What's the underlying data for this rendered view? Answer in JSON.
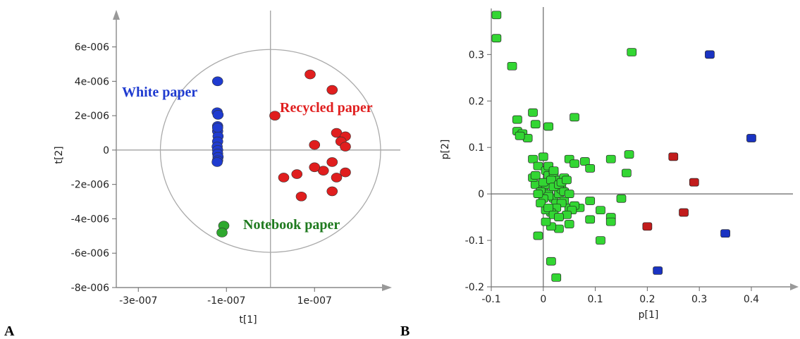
{
  "chart_data": [
    {
      "type": "scatter",
      "panel_label": "A",
      "xlabel": "t[1]",
      "ylabel": "t[2]",
      "xlim": [
        -3.5e-07,
        2.5e-07
      ],
      "ylim": [
        -8e-06,
        7.5e-06
      ],
      "x_ticks": [
        -3e-07,
        -1e-07,
        1e-07
      ],
      "x_tick_labels": [
        "-3e-007",
        "-1e-007",
        "1e-007"
      ],
      "y_ticks": [
        6e-06,
        4e-06,
        2e-06,
        0,
        -2e-06,
        -4e-06,
        -6e-06,
        -8e-06
      ],
      "y_tick_labels": [
        "6e-006",
        "4e-006",
        "2e-006",
        "0",
        "-2e-006",
        "-4e-006",
        "-6e-006",
        "-8e-006"
      ],
      "colors": {
        "White paper": "#1f3bd0",
        "Recycled paper": "#e01e1e",
        "Notebook paper": "#2fa82f"
      },
      "series": [
        {
          "name": "White paper",
          "x": [
            -1.2e-07,
            -1.21e-07,
            -1.19e-07,
            -1.2e-07,
            -1.2e-07,
            -1.19e-07,
            -1.2e-07,
            -1.21e-07,
            -1.2e-07,
            -1.2e-07,
            -1.19e-07,
            -1.2e-07,
            -1.21e-07,
            -1.2e-07
          ],
          "y": [
            4e-06,
            2.2e-06,
            2.05e-06,
            1.4e-06,
            1.1e-06,
            8e-07,
            5e-07,
            2e-07,
            0,
            -2e-07,
            -4e-07,
            -6e-07,
            -7e-07,
            1.3e-06
          ]
        },
        {
          "name": "Recycled paper",
          "x": [
            1e-08,
            9e-08,
            1.4e-07,
            1.5e-07,
            1.7e-07,
            1.6e-07,
            1.7e-07,
            1e-07,
            1.4e-07,
            1.2e-07,
            6e-08,
            3e-08,
            1.7e-07,
            1e-07,
            1.5e-07,
            7e-08,
            1.4e-07
          ],
          "y": [
            2e-06,
            4.4e-06,
            3.5e-06,
            1e-06,
            8e-07,
            5e-07,
            2e-07,
            3e-07,
            -7e-07,
            -1.2e-06,
            -1.4e-06,
            -1.6e-06,
            -1.3e-06,
            -1e-06,
            -1.6e-06,
            -2.7e-06,
            -2.4e-06
          ]
        },
        {
          "name": "Notebook paper",
          "x": [
            -1.06e-07,
            -1.1e-07
          ],
          "y": [
            -4.4e-06,
            -4.8e-06
          ]
        }
      ],
      "ellipse": {
        "cx": 0,
        "cy": -5e-08,
        "rx": 2.5e-07,
        "ry": 5.9e-06
      }
    },
    {
      "type": "scatter",
      "panel_label": "B",
      "xlabel": "p[1]",
      "ylabel": "p[2]",
      "xlim": [
        -0.1,
        0.48
      ],
      "ylim": [
        -0.2,
        0.39
      ],
      "x_ticks": [
        -0.1,
        0,
        0.1,
        0.2,
        0.3,
        0.4
      ],
      "x_tick_labels": [
        "-0.1",
        "0",
        "0.1",
        "0.2",
        "0.3",
        "0.4"
      ],
      "y_ticks": [
        0.3,
        0.2,
        0.1,
        0,
        -0.1,
        -0.2
      ],
      "y_tick_labels": [
        "0.3",
        "0.2",
        "0.1",
        "0",
        "-0.1",
        "-0.2"
      ],
      "colors": {
        "green": "#33d633",
        "red": "#c21c1c",
        "blue": "#1a33c2"
      },
      "series": [
        {
          "name": "",
          "color_key": "blue",
          "x": [
            0.32,
            0.4,
            0.35,
            0.22
          ],
          "y": [
            0.3,
            0.12,
            -0.085,
            -0.165
          ]
        },
        {
          "name": "",
          "color_key": "red",
          "x": [
            0.25,
            0.29,
            0.27,
            0.2
          ],
          "y": [
            0.08,
            0.025,
            -0.04,
            -0.07
          ]
        },
        {
          "name": "",
          "color_key": "green",
          "x": [
            -0.09,
            -0.09,
            -0.06,
            -0.05,
            -0.05,
            -0.04,
            -0.03,
            -0.045,
            -0.02,
            -0.015,
            0.01,
            0.06,
            0.17,
            -0.02,
            -0.01,
            0.0,
            0.005,
            0.01,
            0.02,
            0.03,
            0.04,
            0.05,
            0.06,
            0.08,
            0.09,
            0.13,
            0.16,
            0.165,
            0.09,
            0.11,
            0.13,
            0.15,
            0.13,
            0.11,
            0.09,
            0.07,
            0.05,
            0.03,
            0.015,
            0.005,
            -0.01,
            -0.015,
            0.0,
            0.01,
            0.02,
            0.025,
            0.03,
            0.035,
            0.04,
            0.05,
            0.005,
            0.0,
            -0.005,
            0.01,
            0.015,
            0.02,
            0.03,
            0.04,
            0.05,
            0.06,
            0.055,
            0.045,
            0.035,
            0.025,
            0.015,
            0.005,
            0.0,
            0.01,
            0.02,
            -0.005,
            -0.01,
            0.015,
            0.025,
            0.035,
            0.045,
            -0.02,
            -0.015,
            0.01,
            0.02,
            0.03
          ],
          "y": [
            0.385,
            0.335,
            0.275,
            0.16,
            0.135,
            0.13,
            0.12,
            0.125,
            0.175,
            0.15,
            0.145,
            0.165,
            0.305,
            0.075,
            0.06,
            0.08,
            0.05,
            0.04,
            0.045,
            0.03,
            0.035,
            0.075,
            0.065,
            0.07,
            0.055,
            0.075,
            0.045,
            0.085,
            -0.015,
            -0.035,
            -0.05,
            -0.01,
            -0.06,
            -0.1,
            -0.055,
            -0.03,
            -0.065,
            -0.075,
            -0.07,
            -0.06,
            -0.09,
            0.02,
            0.01,
            0.0,
            -0.01,
            -0.02,
            0.0,
            0.01,
            -0.015,
            -0.03,
            0.02,
            0.025,
            0.005,
            -0.005,
            0.03,
            0.015,
            0.02,
            0.005,
            0.0,
            -0.025,
            -0.035,
            -0.045,
            -0.02,
            -0.03,
            -0.04,
            -0.035,
            -0.01,
            0.06,
            0.05,
            -0.02,
            0.0,
            -0.145,
            -0.18,
            0.025,
            0.03,
            0.035,
            0.04,
            -0.03,
            -0.045,
            -0.05
          ]
        }
      ]
    }
  ],
  "labels": {
    "a_white": "White paper",
    "a_recycled": "Recycled paper",
    "a_notebook": "Notebook paper",
    "panel_a": "A",
    "panel_b": "B"
  },
  "group_colors": {
    "white": "#1f3bd0",
    "recycled": "#e01e1e",
    "notebook": "#1f7a1f"
  }
}
